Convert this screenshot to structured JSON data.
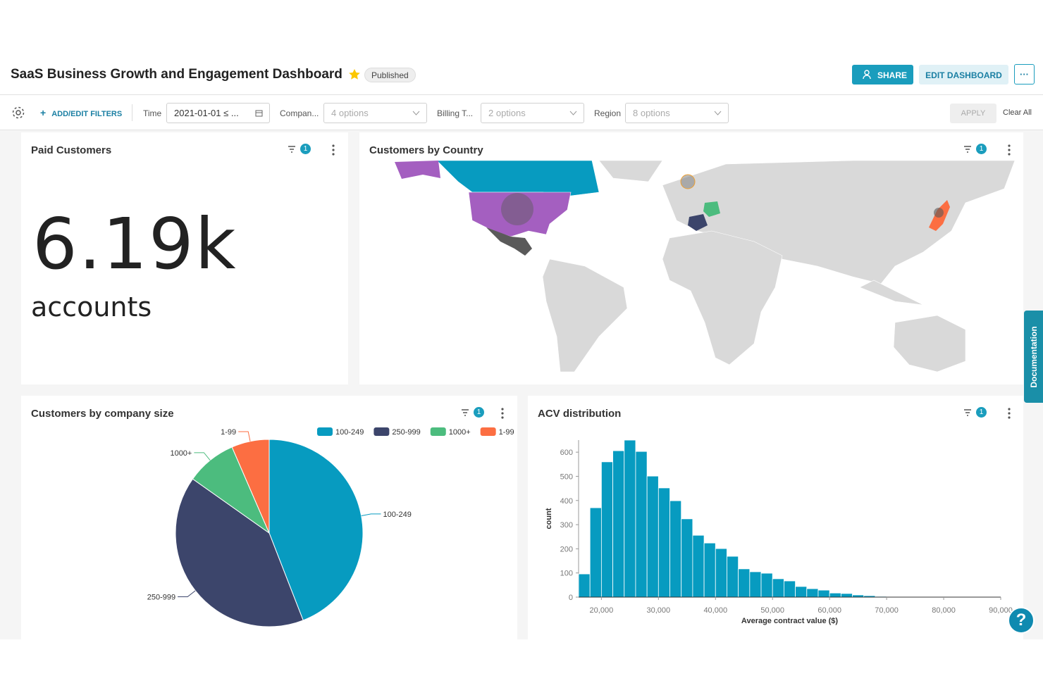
{
  "header": {
    "title": "SaaS Business Growth and Engagement Dashboard",
    "status": "Published",
    "share": "SHARE",
    "edit": "EDIT DASHBOARD",
    "more": "···"
  },
  "filters": {
    "add": "ADD/EDIT FILTERS",
    "items": [
      {
        "label": "Time",
        "value": "2021-01-01 ≤ ..."
      },
      {
        "label": "Compan...",
        "value": "4 options"
      },
      {
        "label": "Billing T...",
        "value": "2 options"
      },
      {
        "label": "Region",
        "value": "8 options"
      }
    ],
    "apply": "APPLY",
    "clear": "Clear All"
  },
  "side_tab": "Documentation",
  "help": "?",
  "panels": {
    "paid": {
      "title": "Paid Customers",
      "filter_count": 1,
      "big_number": "6.19k",
      "subtitle": "accounts"
    },
    "country": {
      "title": "Customers by Country",
      "filter_count": 1
    },
    "company_size": {
      "title": "Customers by company size",
      "filter_count": 1,
      "chart": {
        "type": "pie",
        "categories": [
          "100-249",
          "250-999",
          "1000+",
          "1-99"
        ],
        "values": [
          44.1,
          40.7,
          8.7,
          6.5
        ],
        "colors": [
          "#079bc0",
          "#3c456b",
          "#4cbc7e",
          "#fc6e42"
        ]
      }
    },
    "acv": {
      "title": "ACV distribution",
      "filter_count": 1,
      "chart": {
        "type": "histogram",
        "color": "#079bc0",
        "bins": [
          16000,
          18000,
          20000,
          22000,
          24000,
          26000,
          28000,
          30000,
          32000,
          34000,
          36000,
          38000,
          40000,
          42000,
          44000,
          46000,
          48000,
          50000,
          52000,
          54000,
          56000,
          58000,
          60000,
          62000,
          64000,
          66000,
          68000,
          70000,
          72000,
          74000,
          76000
        ],
        "counts": [
          96,
          370,
          560,
          606,
          650,
          603,
          501,
          452,
          399,
          324,
          256,
          224,
          201,
          169,
          117,
          105,
          99,
          76,
          67,
          44,
          35,
          29,
          17,
          15,
          9,
          6,
          3,
          1,
          0,
          1
        ],
        "xlim": [
          16000,
          90000
        ],
        "ylim": [
          0,
          650
        ],
        "xticks": [
          {
            "value": 20000,
            "label": "20,000"
          },
          {
            "value": 30000,
            "label": "30,000"
          },
          {
            "value": 40000,
            "label": "40,000"
          },
          {
            "value": 50000,
            "label": "50,000"
          },
          {
            "value": 60000,
            "label": "60,000"
          },
          {
            "value": 70000,
            "label": "70,000"
          },
          {
            "value": 80000,
            "label": "80,000"
          },
          {
            "value": 90000,
            "label": "90,000"
          }
        ],
        "yticks": [
          0,
          100,
          200,
          300,
          400,
          500,
          600
        ],
        "xlabel": "Average contract value ($)",
        "ylabel": "count"
      }
    }
  }
}
